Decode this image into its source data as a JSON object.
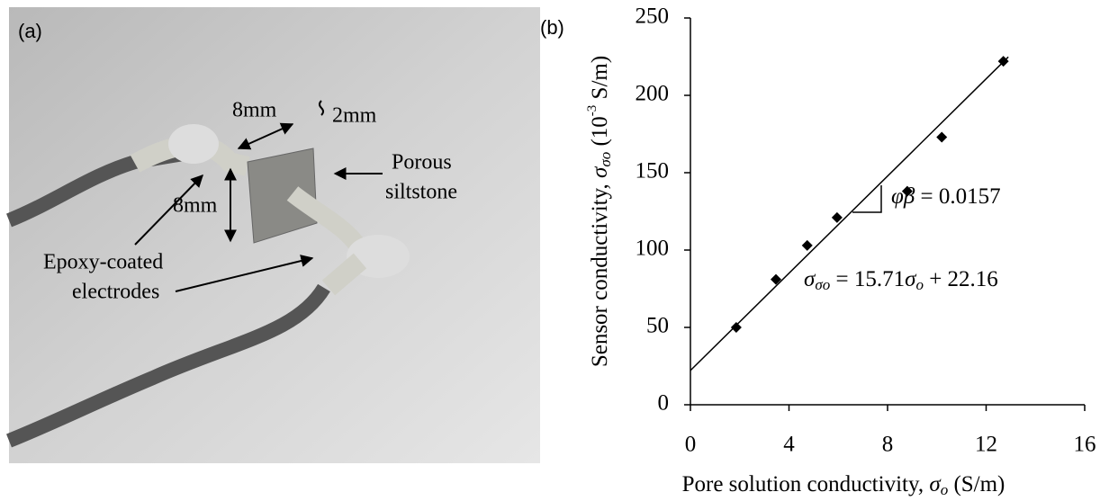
{
  "photo": {
    "label": "(a)",
    "annotations": [
      "8mm",
      "2mm",
      "Porous",
      "siltstone",
      "8mm",
      "Epoxy-coated",
      "electrodes"
    ]
  },
  "chart_data": {
    "type": "scatter",
    "panel_label": "(b)",
    "xlabel": [
      "Pore solution conductivity, ",
      "σ",
      "o",
      " (S/m)"
    ],
    "ylabel": [
      "Sensor conductivity, ",
      "σ",
      "σo",
      " (10",
      "-3",
      " S/m)"
    ],
    "xlim": [
      0,
      16
    ],
    "ylim": [
      0,
      250
    ],
    "xticks": [
      0,
      4,
      8,
      12,
      16
    ],
    "yticks": [
      0,
      50,
      100,
      150,
      200,
      250
    ],
    "x": [
      1.86,
      3.47,
      4.74,
      5.95,
      8.8,
      10.2,
      12.7
    ],
    "values": [
      50,
      81,
      103,
      121,
      138,
      173,
      222
    ],
    "color": "#000000",
    "trendline": {
      "x": [
        0,
        12.9
      ],
      "values": [
        22.16,
        224.8
      ]
    },
    "equation": [
      "σ",
      "σo",
      " = 15.71",
      "σ",
      "o",
      " + 22.16"
    ],
    "slope_label": [
      "φβ",
      " = 0.0157"
    ]
  }
}
